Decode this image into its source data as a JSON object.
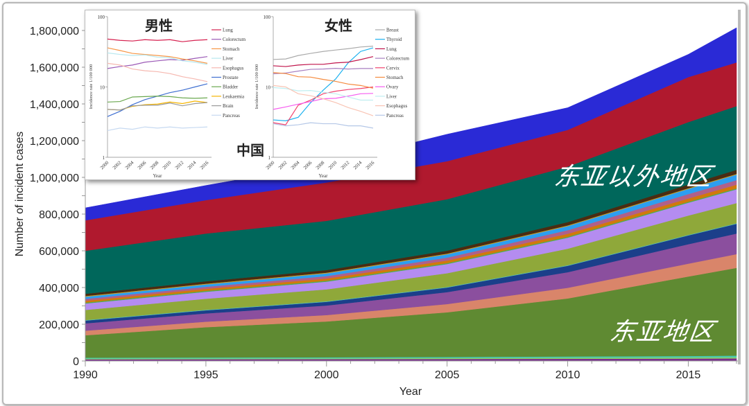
{
  "chart_data": [
    {
      "type": "area",
      "stacked": true,
      "xlabel": "Year",
      "ylabel": "Number of incident cases",
      "xlim": [
        1990,
        2017
      ],
      "ylim": [
        0,
        1800000
      ],
      "xticks": [
        1990,
        1995,
        2000,
        2005,
        2010,
        2015
      ],
      "yticks": [
        0,
        200000,
        400000,
        600000,
        800000,
        1000000,
        1200000,
        1400000,
        1600000,
        1800000
      ],
      "ytick_labels": [
        "0",
        "200,000",
        "400,000",
        "600,000",
        "800,000",
        "1,000,000",
        "1,200,000",
        "1,400,000",
        "1,600,000",
        "1,800,000"
      ],
      "grid": false,
      "x": [
        1990,
        1995,
        2000,
        2005,
        2010,
        2015,
        2017
      ],
      "series": [
        {
          "color": "#7b2d8e",
          "values": [
            9000,
            9500,
            10000,
            11000,
            12000,
            13000,
            14000
          ]
        },
        {
          "color": "#8bd16a",
          "values": [
            4000,
            4200,
            4500,
            5000,
            5500,
            6000,
            6500
          ]
        },
        {
          "color": "#48c9b0",
          "values": [
            5000,
            5300,
            5600,
            6000,
            7000,
            8000,
            8500
          ]
        },
        {
          "color": "#5f8a32",
          "values": [
            122000,
            165000,
            195000,
            243000,
            316000,
            433000,
            478000
          ]
        },
        {
          "color": "#d9856a",
          "values": [
            25000,
            30000,
            35000,
            45000,
            58000,
            70000,
            75000
          ]
        },
        {
          "color": "#8b4f9e",
          "values": [
            40000,
            45000,
            52000,
            65000,
            85000,
            106000,
            112000
          ]
        },
        {
          "color": "#1b3f8a",
          "values": [
            15000,
            17000,
            20000,
            25000,
            35000,
            48000,
            53000
          ]
        },
        {
          "color": "#56c3b4",
          "values": [
            3000,
            3000,
            3000,
            3000,
            3000,
            3000,
            3000
          ]
        },
        {
          "color": "#8fa83a",
          "values": [
            55000,
            60000,
            65000,
            75000,
            90000,
            105000,
            110000
          ]
        },
        {
          "color": "#b48cf0",
          "values": [
            35000,
            38000,
            42000,
            50000,
            60000,
            70000,
            75000
          ]
        },
        {
          "color": "#4caf50",
          "values": [
            5000,
            5000,
            5000,
            5000,
            5000,
            5000,
            5000
          ]
        },
        {
          "color": "#d2780c",
          "values": [
            10000,
            11000,
            12000,
            14000,
            16000,
            18000,
            20000
          ]
        },
        {
          "color": "#b0608a",
          "values": [
            10000,
            11000,
            13000,
            16000,
            20000,
            24000,
            25000
          ]
        },
        {
          "color": "#2d9ef0",
          "values": [
            12000,
            13000,
            15000,
            18000,
            22000,
            28000,
            30000
          ]
        },
        {
          "color": "#c9a227",
          "values": [
            4000,
            4000,
            4000,
            4000,
            4000,
            4000,
            4000
          ]
        },
        {
          "color": "#4a2c12",
          "values": [
            12000,
            13000,
            14000,
            16000,
            18000,
            20000,
            22000
          ]
        },
        {
          "color": "#00675b",
          "values": [
            234000,
            260000,
            268000,
            280000,
            302000,
            340000,
            347000
          ]
        },
        {
          "color": "#b0192e",
          "values": [
            166000,
            182000,
            209000,
            207000,
            200000,
            245000,
            238000
          ]
        },
        {
          "color": "#2a2ad6",
          "values": [
            68000,
            80000,
            100000,
            147000,
            121000,
            124000,
            189000
          ]
        }
      ],
      "annotations": [
        "东亚以外地区",
        "东亚地区"
      ]
    },
    {
      "type": "line",
      "title": "男性",
      "xlabel": "Year",
      "ylabel": "Incidence rate 1/100 000",
      "yscale": "log",
      "ylim": [
        1,
        100
      ],
      "ytick_labels": [
        "100",
        "10",
        "1"
      ],
      "x": [
        2000,
        2002,
        2004,
        2006,
        2008,
        2010,
        2012,
        2014,
        2016
      ],
      "legend": "right",
      "series": [
        {
          "name": "Lung",
          "color": "#d6204f",
          "values": [
            48,
            46,
            45,
            47,
            46,
            47,
            44,
            46,
            47
          ]
        },
        {
          "name": "Colorectum",
          "color": "#9b59b6",
          "values": [
            18.3,
            19.5,
            20.5,
            22.5,
            23.5,
            24.5,
            24,
            25.5,
            27
          ]
        },
        {
          "name": "Stomach",
          "color": "#f79646",
          "values": [
            36,
            33,
            30,
            29,
            28,
            27,
            25,
            23.5,
            21.7
          ]
        },
        {
          "name": "Liver",
          "color": "#b7e8ef",
          "values": [
            30.5,
            29,
            28,
            28.5,
            26.5,
            26,
            23.5,
            22.5,
            20.9
          ]
        },
        {
          "name": "Esophagus",
          "color": "#f6b8b0",
          "values": [
            21.7,
            20.5,
            18,
            17,
            16.5,
            15.5,
            14,
            13,
            11.9
          ]
        },
        {
          "name": "Prostate",
          "color": "#3f6fd1",
          "values": [
            3.8,
            4.5,
            5.6,
            6.6,
            7.4,
            8.3,
            9,
            10,
            11.1
          ]
        },
        {
          "name": "Bladder",
          "color": "#6aa84f",
          "values": [
            6.1,
            6.2,
            7.2,
            7.3,
            7.4,
            7.3,
            7,
            6.9,
            7
          ]
        },
        {
          "name": "Leukaemia",
          "color": "#f5b400",
          "values": [
            4.8,
            4.7,
            5.3,
            5.6,
            5.7,
            6.1,
            5.8,
            6.3,
            6
          ]
        },
        {
          "name": "Brain",
          "color": "#999999",
          "values": [
            4.8,
            4.7,
            5.4,
            5.5,
            5.5,
            5.9,
            5.4,
            5.8,
            6
          ]
        },
        {
          "name": "Pancreas",
          "color": "#c6d9f1",
          "values": [
            2.4,
            2.6,
            2.5,
            2.7,
            2.6,
            2.7,
            2.6,
            2.65,
            2.7
          ]
        }
      ]
    },
    {
      "type": "line",
      "title": "女性",
      "xlabel": "Year",
      "ylabel": "Incidence rate 1/100 000",
      "yscale": "log",
      "ylim": [
        1,
        100
      ],
      "ytick_labels": [
        "100",
        "10",
        "1"
      ],
      "x": [
        2000,
        2002,
        2004,
        2006,
        2008,
        2010,
        2012,
        2014,
        2016
      ],
      "legend": "right",
      "series": [
        {
          "name": "Breast",
          "color": "#aaaaaa",
          "values": [
            24.6,
            25,
            28,
            30,
            32,
            33.5,
            35,
            37,
            38
          ]
        },
        {
          "name": "Thyroid",
          "color": "#1ab0ef",
          "values": [
            3.4,
            3.3,
            3.7,
            6,
            9,
            13,
            22,
            32,
            36
          ]
        },
        {
          "name": "Lung",
          "color": "#c0134a",
          "values": [
            20,
            19.5,
            20.5,
            21,
            21,
            22,
            22.5,
            24.5,
            27
          ]
        },
        {
          "name": "Colorectum",
          "color": "#a77fc0",
          "values": [
            15.4,
            15.8,
            16.8,
            17.8,
            18,
            18.4,
            18,
            18.3,
            18.3
          ]
        },
        {
          "name": "Cervix",
          "color": "#f0416c",
          "values": [
            3.1,
            2.9,
            5.5,
            6.5,
            8,
            8.7,
            9.2,
            9.5,
            10
          ]
        },
        {
          "name": "Stomach",
          "color": "#f58a3d",
          "values": [
            16,
            15.5,
            14,
            13.8,
            12.8,
            12,
            11,
            10.5,
            9.6
          ]
        },
        {
          "name": "Ovary",
          "color": "#f65cf0",
          "values": [
            4.8,
            5.2,
            5.7,
            6.2,
            6.8,
            6.9,
            7.4,
            8,
            8.1
          ]
        },
        {
          "name": "Liver",
          "color": "#bfeef0",
          "values": [
            9.8,
            9.5,
            8.8,
            8.9,
            8.4,
            8,
            7.2,
            6.5,
            6.5
          ]
        },
        {
          "name": "Esophagus",
          "color": "#f9c4b4",
          "values": [
            10.5,
            10,
            8,
            7.5,
            6.8,
            6,
            5.1,
            4.5,
            3.9
          ]
        },
        {
          "name": "Pancreas",
          "color": "#b4c7e7",
          "values": [
            3,
            2.8,
            2.9,
            3.1,
            3,
            3,
            2.8,
            2.8,
            2.6
          ]
        }
      ]
    }
  ],
  "inset_label": "中国"
}
